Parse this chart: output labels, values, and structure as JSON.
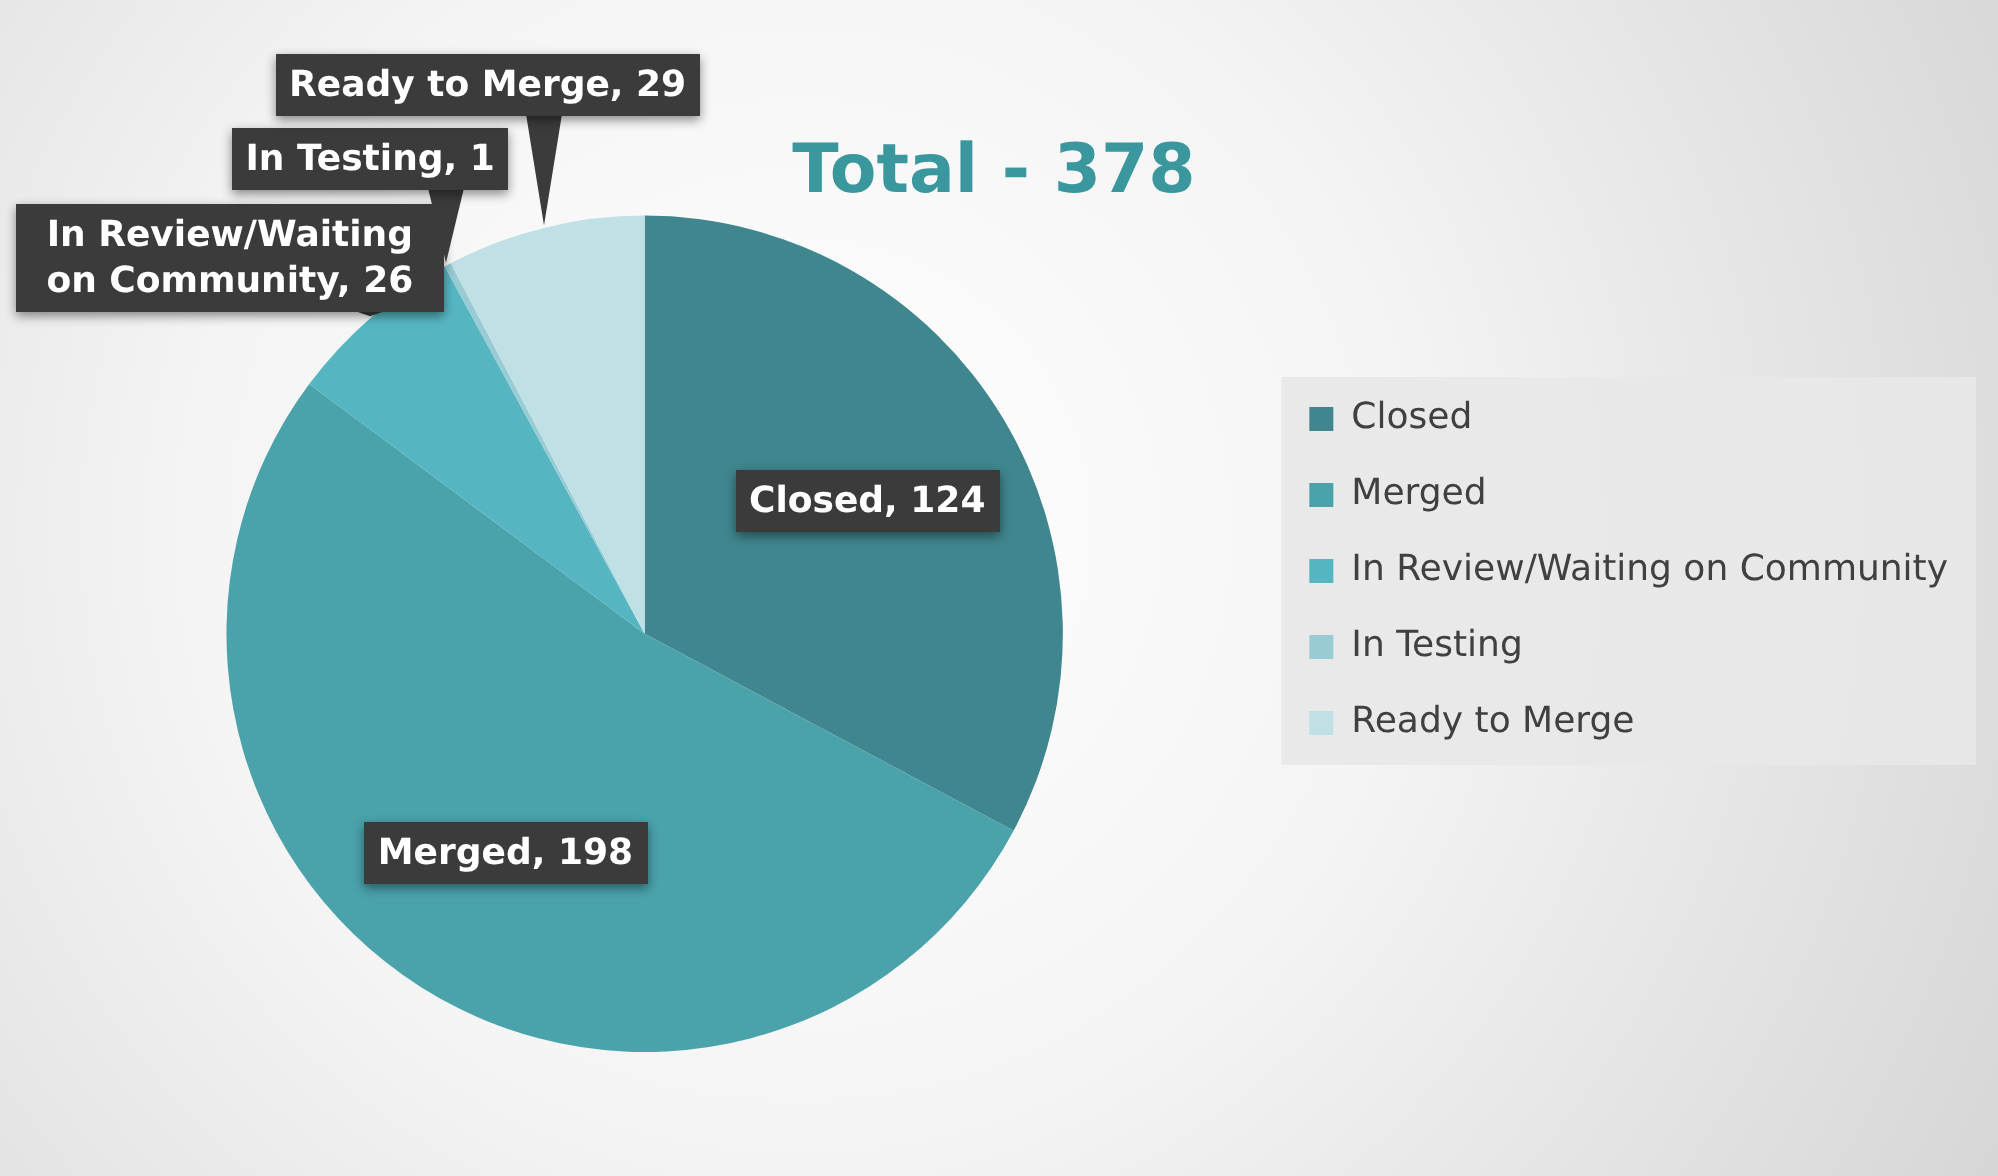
{
  "chart_data": {
    "type": "pie",
    "title": "Total - 378",
    "categories": [
      "Closed",
      "Merged",
      "In Review/Waiting on Community",
      "In Testing",
      "Ready to Merge"
    ],
    "values": [
      124,
      198,
      26,
      1,
      29
    ],
    "value_labels": [
      "Closed, 124",
      "Merged, 198",
      "In Review/Waiting on Community, 26",
      "In Testing, 1",
      "Ready to Merge, 29"
    ],
    "colors": [
      "#40868e",
      "#4aa2ab",
      "#55b6c2",
      "#98cbd3",
      "#bfe0e5"
    ],
    "legend": "right"
  }
}
